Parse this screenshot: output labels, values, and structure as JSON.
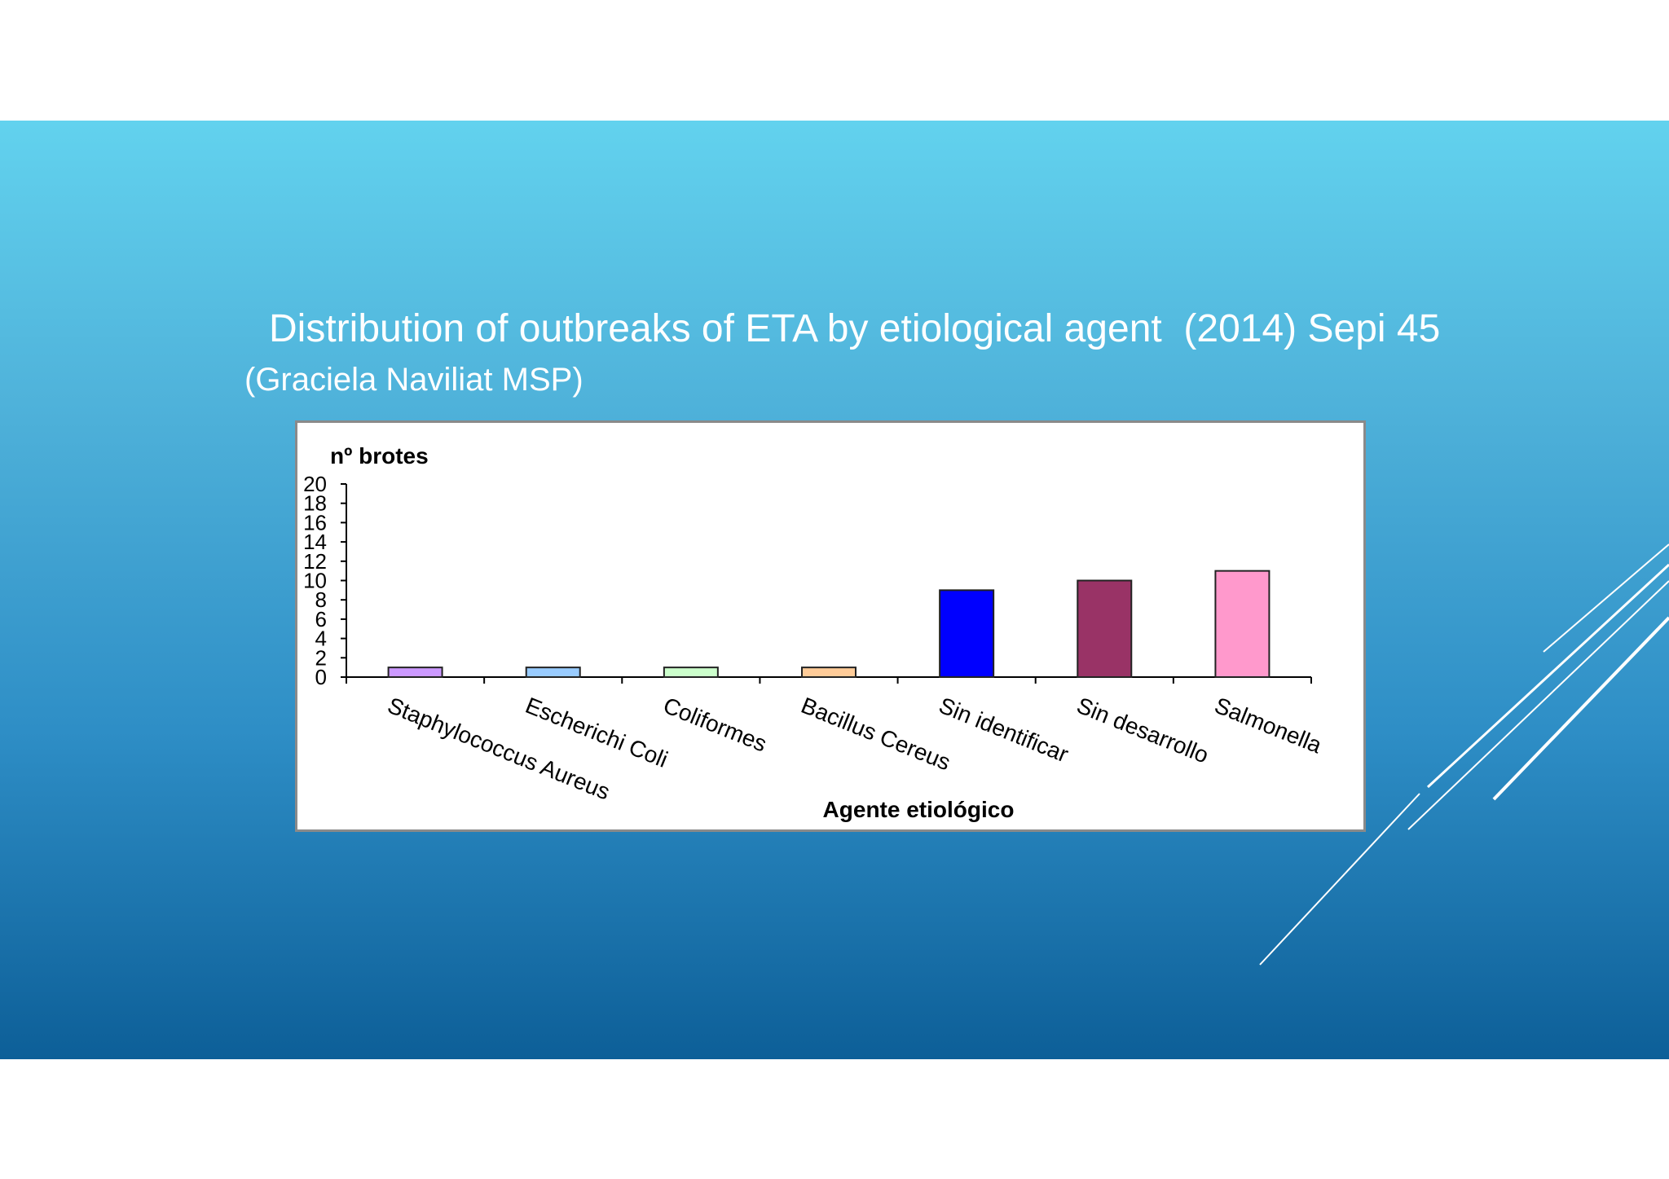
{
  "slide": {
    "title": "Distribution of outbreaks of ETA by etiological agent  (2014) Sepi 45",
    "subtitle": "(Graciela Naviliat MSP)",
    "colors": {
      "gradient_top": "#62d2ee",
      "gradient_bottom": "#0d5f98",
      "text": "#ffffff"
    }
  },
  "chart_data": {
    "type": "bar",
    "ylabel": "nº brotes",
    "xlabel": "Agente etiológico",
    "ylim": [
      0,
      20
    ],
    "yticks": [
      "0",
      "2",
      "4",
      "6",
      "8",
      "10",
      "12",
      "14",
      "16",
      "18",
      "20"
    ],
    "categories": [
      "Staphylococcus Aureus",
      "Escherichi Coli",
      "Coliformes",
      "Bacillus Cereus",
      "Sin identificar",
      "Sin desarrollo",
      "Salmonella"
    ],
    "values": [
      1,
      1,
      1,
      1,
      9,
      10,
      11
    ],
    "colors": [
      "#cc99ff",
      "#99ccff",
      "#ccffcc",
      "#ffcc99",
      "#0000ff",
      "#993366",
      "#ff99cc"
    ],
    "grid": false,
    "legend": "none"
  }
}
